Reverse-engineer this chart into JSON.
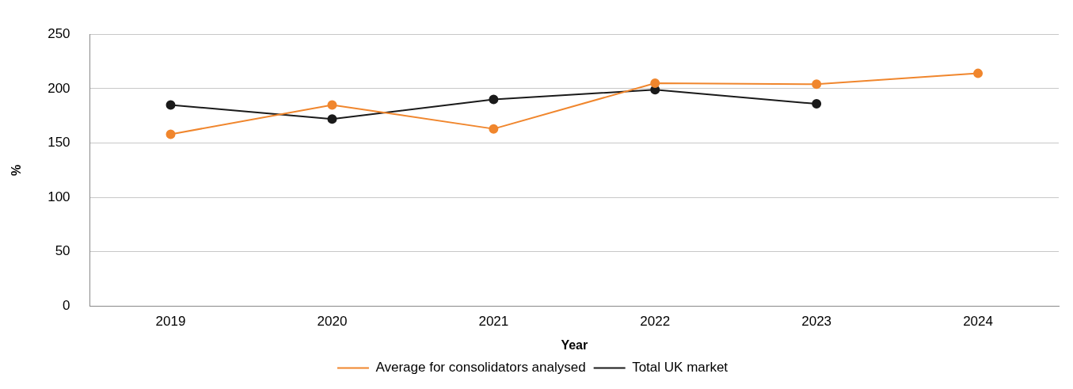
{
  "chart_data": {
    "type": "line",
    "xlabel": "Year",
    "ylabel": "%",
    "categories": [
      "2019",
      "2020",
      "2021",
      "2022",
      "2023",
      "2024"
    ],
    "series": [
      {
        "name": "Average for consolidators analysed",
        "color": "#f0862d",
        "values": [
          158,
          185,
          163,
          205,
          204,
          214
        ]
      },
      {
        "name": "Total UK market",
        "color": "#1a1a1a",
        "values": [
          185,
          172,
          190,
          199,
          186,
          null
        ]
      }
    ],
    "ylim": [
      0,
      250
    ],
    "yticks": [
      0,
      50,
      100,
      150,
      200,
      250
    ],
    "grid": "y",
    "legend": "bottom",
    "marker": "circle",
    "line_style": "solid"
  }
}
